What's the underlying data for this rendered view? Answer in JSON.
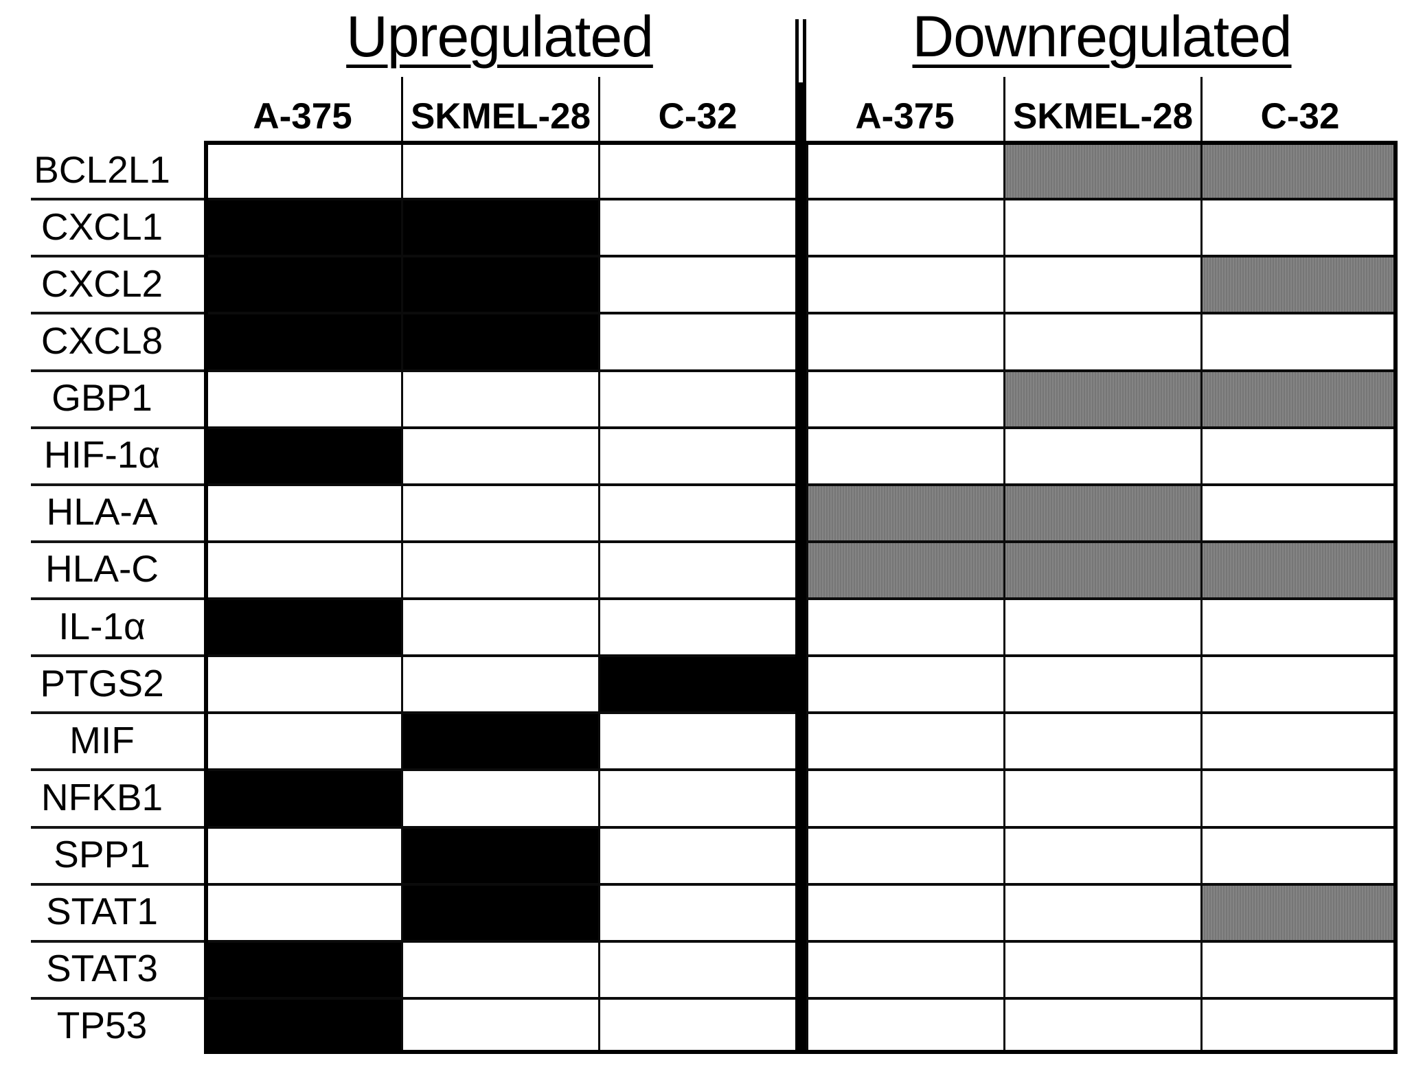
{
  "table": {
    "column_headers": [
      "A-375",
      "SKMEL-28",
      "C-32"
    ],
    "colors": {
      "upregulated_fill": "#000000",
      "downregulated_fill": "#7d7d7d",
      "grid_line": "#000000",
      "background": "#ffffff"
    }
  },
  "chart_data": {
    "type": "heatmap",
    "sections": [
      {
        "label": "Upregulated",
        "fill_color": "#000000"
      },
      {
        "label": "Downregulated",
        "fill_color": "#7d7d7d"
      }
    ],
    "cell_lines": [
      "A-375",
      "SKMEL-28",
      "C-32"
    ],
    "rows": [
      {
        "gene": "BCL2L1",
        "up": [
          0,
          0,
          0
        ],
        "down": [
          0,
          1,
          1
        ]
      },
      {
        "gene": "CXCL1",
        "up": [
          1,
          1,
          0
        ],
        "down": [
          0,
          0,
          0
        ]
      },
      {
        "gene": "CXCL2",
        "up": [
          1,
          1,
          0
        ],
        "down": [
          0,
          0,
          1
        ]
      },
      {
        "gene": "CXCL8",
        "up": [
          1,
          1,
          0
        ],
        "down": [
          0,
          0,
          0
        ]
      },
      {
        "gene": "GBP1",
        "up": [
          0,
          0,
          0
        ],
        "down": [
          0,
          1,
          1
        ]
      },
      {
        "gene": "HIF-1α",
        "up": [
          1,
          0,
          0
        ],
        "down": [
          0,
          0,
          0
        ]
      },
      {
        "gene": "HLA-A",
        "up": [
          0,
          0,
          0
        ],
        "down": [
          1,
          1,
          0
        ]
      },
      {
        "gene": "HLA-C",
        "up": [
          0,
          0,
          0
        ],
        "down": [
          1,
          1,
          1
        ]
      },
      {
        "gene": "IL-1α",
        "up": [
          1,
          0,
          0
        ],
        "down": [
          0,
          0,
          0
        ]
      },
      {
        "gene": "PTGS2",
        "up": [
          0,
          0,
          1
        ],
        "down": [
          0,
          0,
          0
        ]
      },
      {
        "gene": "MIF",
        "up": [
          0,
          1,
          0
        ],
        "down": [
          0,
          0,
          0
        ]
      },
      {
        "gene": "NFKB1",
        "up": [
          1,
          0,
          0
        ],
        "down": [
          0,
          0,
          0
        ]
      },
      {
        "gene": "SPP1",
        "up": [
          0,
          1,
          0
        ],
        "down": [
          0,
          0,
          0
        ]
      },
      {
        "gene": "STAT1",
        "up": [
          0,
          1,
          0
        ],
        "down": [
          0,
          0,
          1
        ]
      },
      {
        "gene": "STAT3",
        "up": [
          1,
          0,
          0
        ],
        "down": [
          0,
          0,
          0
        ]
      },
      {
        "gene": "TP53",
        "up": [
          1,
          0,
          0
        ],
        "down": [
          0,
          0,
          0
        ]
      }
    ]
  }
}
